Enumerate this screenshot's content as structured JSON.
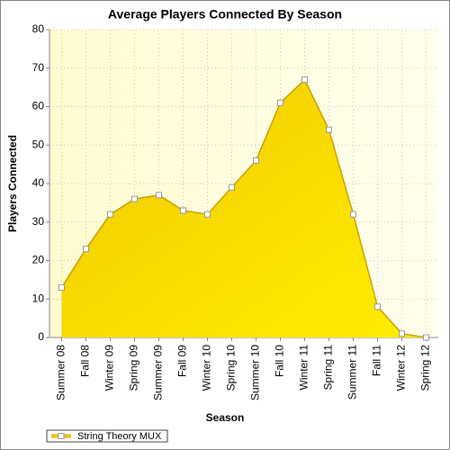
{
  "chart_data": {
    "type": "area",
    "title": "Average Players Connected By Season",
    "x_label": "Season",
    "y_label": "Players Connected",
    "categories": [
      "Summer 08",
      "Fall 08",
      "Winter 09",
      "Spring 09",
      "Summer 09",
      "Fall 09",
      "Winter 10",
      "Spring 10",
      "Summer 10",
      "Fall 10",
      "Winter 11",
      "Spring 11",
      "Summer 11",
      "Fall 11",
      "Winter 12",
      "Spring 12"
    ],
    "series": [
      {
        "name": "String Theory MUX",
        "color": "#ffd700",
        "line_color": "#c8a000",
        "values": [
          13,
          23,
          32,
          36,
          37,
          33,
          32,
          39,
          46,
          61,
          67,
          54,
          32,
          8,
          1,
          0
        ]
      }
    ],
    "ylim": [
      0,
      80
    ],
    "yticks": [
      0,
      10,
      20,
      30,
      40,
      50,
      60,
      70,
      80
    ],
    "grid": true,
    "legend": "bottom-left"
  }
}
